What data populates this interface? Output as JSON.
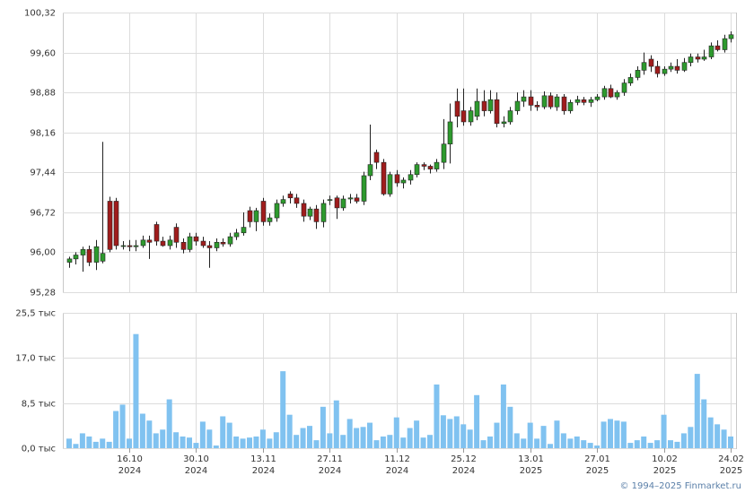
{
  "footer": "© 1994–2025 Finmarket.ru",
  "chart_data": [
    {
      "type": "candlestick",
      "categories": [
        null,
        null,
        null,
        null,
        null,
        null,
        null,
        null,
        null,
        "16.10",
        null,
        null,
        null,
        null,
        null,
        null,
        null,
        null,
        null,
        "30.10",
        null,
        null,
        null,
        null,
        null,
        null,
        null,
        null,
        null,
        "13.11",
        null,
        null,
        null,
        null,
        null,
        null,
        null,
        null,
        null,
        "27.11",
        null,
        null,
        null,
        null,
        null,
        null,
        null,
        null,
        null,
        "11.12",
        null,
        null,
        null,
        null,
        null,
        null,
        null,
        null,
        null,
        "25.12",
        null,
        null,
        null,
        null,
        null,
        null,
        null,
        null,
        null,
        "13.01",
        null,
        null,
        null,
        null,
        null,
        null,
        null,
        null,
        null,
        "27.01",
        null,
        null,
        null,
        null,
        null,
        null,
        null,
        null,
        null,
        "10.02",
        null,
        null,
        null,
        null,
        null,
        null,
        null,
        null,
        null,
        "24.02"
      ],
      "category_years": [
        null,
        null,
        null,
        null,
        null,
        null,
        null,
        null,
        null,
        "2024",
        null,
        null,
        null,
        null,
        null,
        null,
        null,
        null,
        null,
        "2024",
        null,
        null,
        null,
        null,
        null,
        null,
        null,
        null,
        null,
        "2024",
        null,
        null,
        null,
        null,
        null,
        null,
        null,
        null,
        null,
        "2024",
        null,
        null,
        null,
        null,
        null,
        null,
        null,
        null,
        null,
        "2024",
        null,
        null,
        null,
        null,
        null,
        null,
        null,
        null,
        null,
        "2024",
        null,
        null,
        null,
        null,
        null,
        null,
        null,
        null,
        null,
        "2025",
        null,
        null,
        null,
        null,
        null,
        null,
        null,
        null,
        null,
        "2025",
        null,
        null,
        null,
        null,
        null,
        null,
        null,
        null,
        null,
        "2025",
        null,
        null,
        null,
        null,
        null,
        null,
        null,
        null,
        null,
        "2025"
      ],
      "open": [
        95.82,
        95.88,
        95.95,
        96.05,
        95.82,
        95.84,
        96.92,
        96.92,
        96.12,
        96.12,
        96.1,
        96.12,
        96.22,
        96.5,
        96.2,
        96.12,
        96.45,
        96.18,
        96.05,
        96.28,
        96.2,
        96.12,
        96.08,
        96.18,
        96.15,
        96.28,
        96.35,
        96.75,
        96.55,
        96.92,
        96.55,
        96.62,
        96.88,
        97.05,
        96.98,
        96.88,
        96.65,
        96.78,
        96.55,
        96.95,
        96.98,
        96.8,
        96.96,
        96.98,
        96.92,
        97.38,
        97.8,
        97.62,
        97.05,
        97.4,
        97.25,
        97.3,
        97.4,
        97.58,
        97.55,
        97.5,
        97.62,
        97.95,
        98.72,
        98.55,
        98.35,
        98.45,
        98.72,
        98.55,
        98.75,
        98.32,
        98.35,
        98.55,
        98.72,
        98.8,
        98.65,
        98.62,
        98.82,
        98.62,
        98.8,
        98.55,
        98.7,
        98.75,
        98.7,
        98.75,
        98.8,
        98.95,
        98.8,
        98.88,
        99.05,
        99.15,
        99.28,
        99.48,
        99.35,
        99.22,
        99.3,
        99.35,
        99.28,
        99.42,
        99.52,
        99.48,
        99.52,
        99.72,
        99.65,
        99.85
      ],
      "high": [
        95.92,
        96.0,
        96.1,
        96.12,
        96.22,
        97.99,
        97.0,
        96.98,
        96.2,
        96.22,
        96.22,
        96.3,
        96.3,
        96.55,
        96.28,
        96.3,
        96.52,
        96.25,
        96.35,
        96.35,
        96.28,
        96.2,
        96.25,
        96.25,
        96.35,
        96.42,
        96.72,
        96.82,
        96.8,
        96.98,
        96.7,
        96.95,
        97.02,
        97.1,
        97.05,
        96.95,
        96.82,
        96.85,
        96.95,
        97.02,
        97.02,
        97.02,
        97.05,
        97.05,
        97.45,
        98.3,
        97.85,
        97.68,
        97.45,
        97.48,
        97.35,
        97.48,
        97.62,
        97.62,
        97.58,
        97.68,
        98.4,
        98.68,
        98.95,
        98.95,
        98.62,
        98.95,
        98.92,
        98.92,
        98.88,
        98.45,
        98.62,
        98.88,
        98.92,
        98.92,
        98.72,
        98.9,
        98.88,
        98.85,
        98.85,
        98.75,
        98.82,
        98.8,
        98.8,
        98.85,
        99.0,
        99.02,
        98.92,
        99.12,
        99.22,
        99.35,
        99.6,
        99.55,
        99.45,
        99.35,
        99.42,
        99.48,
        99.5,
        99.58,
        99.58,
        99.65,
        99.78,
        99.82,
        99.92,
        99.98
      ],
      "low": [
        95.72,
        95.78,
        95.65,
        95.75,
        95.68,
        95.8,
        96.0,
        96.05,
        96.05,
        96.02,
        96.02,
        96.08,
        95.88,
        96.12,
        96.1,
        96.05,
        96.08,
        95.98,
        96.0,
        96.12,
        96.08,
        95.72,
        96.02,
        96.1,
        96.1,
        96.22,
        96.3,
        96.45,
        96.38,
        96.48,
        96.48,
        96.55,
        96.82,
        96.88,
        96.8,
        96.55,
        96.58,
        96.42,
        96.45,
        96.85,
        96.6,
        96.75,
        96.88,
        96.88,
        96.85,
        97.3,
        97.5,
        97.02,
        97.0,
        97.18,
        97.15,
        97.22,
        97.35,
        97.48,
        97.42,
        97.45,
        97.5,
        97.6,
        98.25,
        98.28,
        98.28,
        98.38,
        98.45,
        98.5,
        98.25,
        98.25,
        98.3,
        98.48,
        98.62,
        98.55,
        98.55,
        98.58,
        98.58,
        98.55,
        98.48,
        98.5,
        98.65,
        98.65,
        98.62,
        98.72,
        98.75,
        98.78,
        98.75,
        98.82,
        99.0,
        99.1,
        99.2,
        99.25,
        99.15,
        99.18,
        99.25,
        99.22,
        99.25,
        99.35,
        99.42,
        99.45,
        99.48,
        99.62,
        99.6,
        99.78
      ],
      "close": [
        95.88,
        95.95,
        96.05,
        95.82,
        96.1,
        95.98,
        96.05,
        96.12,
        96.12,
        96.1,
        96.12,
        96.22,
        96.18,
        96.2,
        96.12,
        96.22,
        96.18,
        96.05,
        96.28,
        96.2,
        96.12,
        96.08,
        96.18,
        96.15,
        96.28,
        96.35,
        96.45,
        96.55,
        96.75,
        96.55,
        96.62,
        96.88,
        96.95,
        96.98,
        96.88,
        96.65,
        96.78,
        96.55,
        96.88,
        96.95,
        96.8,
        96.96,
        96.98,
        96.92,
        97.38,
        97.58,
        97.62,
        97.05,
        97.4,
        97.25,
        97.3,
        97.4,
        97.58,
        97.55,
        97.5,
        97.62,
        97.95,
        98.35,
        98.45,
        98.35,
        98.55,
        98.72,
        98.55,
        98.75,
        98.32,
        98.35,
        98.55,
        98.72,
        98.8,
        98.65,
        98.62,
        98.82,
        98.62,
        98.8,
        98.55,
        98.7,
        98.75,
        98.7,
        98.75,
        98.8,
        98.95,
        98.8,
        98.88,
        99.05,
        99.15,
        99.28,
        99.42,
        99.35,
        99.22,
        99.3,
        99.35,
        99.28,
        99.42,
        99.52,
        99.48,
        99.52,
        99.72,
        99.65,
        99.85,
        99.92
      ],
      "up_color": "#2e9a2e",
      "down_color": "#a01c1c",
      "grid": true,
      "ylim": [
        95.28,
        100.32
      ],
      "yticks": [
        {
          "value": 95.28,
          "label": "95,28"
        },
        {
          "value": 96.0,
          "label": "96,00"
        },
        {
          "value": 96.72,
          "label": "96,72"
        },
        {
          "value": 97.44,
          "label": "97,44"
        },
        {
          "value": 98.16,
          "label": "98,16"
        },
        {
          "value": 98.88,
          "label": "98,88"
        },
        {
          "value": 99.6,
          "label": "99,60"
        },
        {
          "value": 100.32,
          "label": "100,32"
        }
      ]
    },
    {
      "type": "bar",
      "color": "#80c2f0",
      "grid": true,
      "values": [
        1.8,
        0.8,
        2.8,
        2.2,
        1.2,
        1.8,
        1.2,
        7.0,
        8.2,
        1.8,
        21.5,
        6.5,
        5.2,
        2.8,
        3.5,
        9.2,
        3.0,
        2.2,
        2.0,
        1.0,
        5.0,
        3.5,
        0.5,
        6.0,
        4.8,
        2.2,
        1.8,
        2.0,
        2.2,
        3.5,
        1.8,
        3.0,
        14.5,
        6.3,
        2.5,
        3.8,
        4.2,
        1.5,
        7.8,
        2.8,
        9.0,
        2.5,
        5.5,
        3.8,
        4.0,
        4.8,
        1.5,
        2.2,
        2.5,
        5.8,
        2.0,
        3.8,
        5.2,
        2.0,
        2.5,
        12.0,
        6.2,
        5.5,
        6.0,
        4.5,
        3.5,
        10.0,
        1.5,
        2.2,
        4.8,
        12.0,
        7.8,
        2.8,
        1.8,
        4.8,
        1.8,
        4.2,
        0.8,
        5.2,
        2.8,
        1.8,
        2.2,
        1.5,
        1.0,
        0.5,
        5.0,
        5.5,
        5.2,
        5.0,
        1.0,
        1.5,
        2.2,
        1.0,
        1.5,
        6.3,
        1.5,
        1.2,
        2.8,
        4.0,
        14.0,
        9.2,
        5.8,
        4.5,
        3.5,
        2.2
      ],
      "ylim": [
        0,
        25.5
      ],
      "yticks": [
        {
          "value": 0,
          "label": "0,0 тыс"
        },
        {
          "value": 8.5,
          "label": "8,5 тыс"
        },
        {
          "value": 17.0,
          "label": "17,0 тыс"
        },
        {
          "value": 25.5,
          "label": "25,5 тыс"
        }
      ]
    }
  ]
}
